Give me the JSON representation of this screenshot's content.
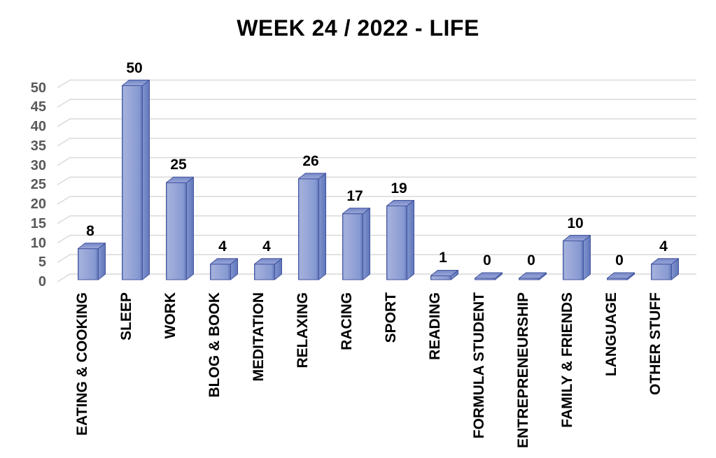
{
  "title": "WEEK 24 / 2022 - LIFE",
  "chart_data": {
    "type": "bar",
    "projection": "3d",
    "title": "WEEK 24 / 2022 - LIFE",
    "categories": [
      "EATING & COOKING",
      "SLEEP",
      "WORK",
      "BLOG & BOOK",
      "MEDITATION",
      "RELAXING",
      "RACING",
      "SPORT",
      "READING",
      "FORMULA STUDENT",
      "ENTREPRENEURSHIP",
      "FAMILY & FRIENDS",
      "LANGUAGE",
      "OTHER STUFF"
    ],
    "values": [
      8,
      50,
      25,
      4,
      4,
      26,
      17,
      19,
      1,
      0,
      0,
      10,
      0,
      4
    ],
    "xlabel": "",
    "ylabel": "",
    "ylim": [
      0,
      50
    ],
    "ytick_step": 5,
    "yticks": [
      0,
      5,
      10,
      15,
      20,
      25,
      30,
      35,
      40,
      45,
      50
    ],
    "grid": true,
    "legend": "none",
    "colors": {
      "background": "#FFFFFF",
      "title": "#000000",
      "gridline": "#D9D9D9",
      "axis_tick_label": "#595959",
      "category_label": "#000000",
      "data_label": "#000000",
      "bar_front": "#94A3D6",
      "bar_front_highlight": "#A6B3DF",
      "bar_side": "#6B80C1",
      "bar_top": "#8093CC",
      "bar_edge": "#44549F"
    }
  }
}
